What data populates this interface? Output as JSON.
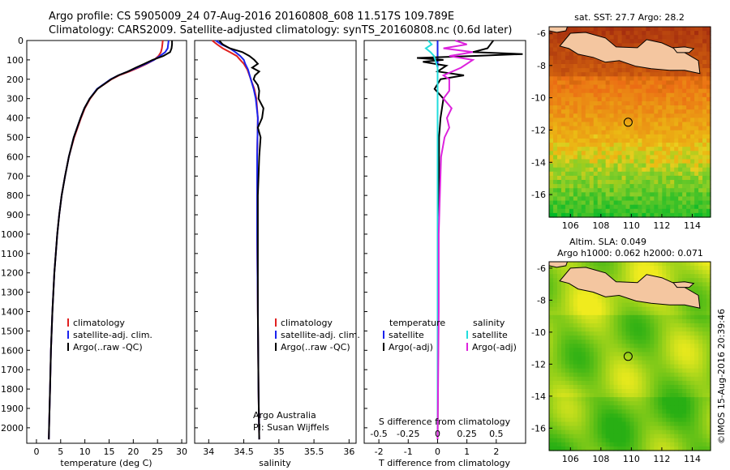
{
  "header": {
    "line1": "Argo profile: CS 5905009_24 07-Aug-2016 20160808_608 11.517S 109.789E",
    "line2": "Climatology: CARS2009. Satellite-adjusted climatology: synTS_20160808.nc (0.6d later)"
  },
  "colors": {
    "climatology": "#e02020",
    "satellite": "#1a22ee",
    "argo": "#000000",
    "sal_satellite": "#22dddd",
    "sal_argo": "#dd22dd",
    "land": "#f4c6a0"
  },
  "chart_data": [
    {
      "type": "line",
      "id": "temperature",
      "xlabel": "temperature (deg C)",
      "xlim": [
        -2,
        31
      ],
      "xticks": [
        "0",
        "5",
        "10",
        "15",
        "20",
        "25",
        "30"
      ],
      "ylim": [
        0,
        2080
      ],
      "yticks": [
        "0",
        "100",
        "200",
        "300",
        "400",
        "500",
        "600",
        "700",
        "800",
        "900",
        "1000",
        "1100",
        "1200",
        "1300",
        "1400",
        "1500",
        "1600",
        "1700",
        "1800",
        "1900",
        "2000"
      ],
      "series": [
        {
          "name": "climatology",
          "depth": [
            0,
            20,
            40,
            60,
            80,
            100,
            120,
            140,
            160,
            180,
            200,
            250,
            300,
            350,
            400,
            500,
            600,
            700,
            800,
            900,
            1000,
            1200,
            1400,
            1600,
            1800,
            2000,
            2060
          ],
          "values": [
            26.1,
            26.0,
            25.9,
            25.7,
            25.2,
            24.3,
            22.8,
            21.1,
            19.2,
            17.1,
            15.5,
            12.6,
            11.1,
            10.0,
            9.2,
            7.8,
            6.7,
            5.9,
            5.2,
            4.7,
            4.3,
            3.7,
            3.3,
            3.0,
            2.8,
            2.6,
            2.55
          ]
        },
        {
          "name": "satellite-adj. clim.",
          "depth": [
            0,
            20,
            40,
            60,
            80,
            100,
            120,
            140,
            160,
            180,
            200,
            250,
            300,
            350,
            400,
            500,
            600,
            700,
            800,
            900,
            1000,
            1200,
            1400,
            1600,
            1800,
            2000,
            2060
          ],
          "values": [
            27.3,
            27.2,
            27.1,
            26.6,
            25.5,
            24.3,
            22.6,
            20.8,
            18.9,
            16.9,
            15.3,
            12.5,
            11.0,
            9.9,
            9.1,
            7.7,
            6.7,
            5.9,
            5.2,
            4.7,
            4.3,
            3.7,
            3.3,
            3.0,
            2.8,
            2.6,
            2.55
          ]
        },
        {
          "name": "Argo(..raw -QC)",
          "depth": [
            0,
            20,
            40,
            60,
            80,
            100,
            120,
            140,
            160,
            180,
            200,
            250,
            300,
            350,
            400,
            500,
            600,
            700,
            800,
            900,
            1000,
            1200,
            1400,
            1600,
            1800,
            2000,
            2060
          ],
          "values": [
            28.0,
            28.0,
            27.9,
            27.6,
            26.2,
            24.0,
            22.3,
            20.5,
            18.9,
            16.9,
            15.4,
            12.6,
            11.0,
            9.9,
            9.1,
            7.7,
            6.7,
            5.9,
            5.2,
            4.7,
            4.3,
            3.7,
            3.3,
            3.0,
            2.8,
            2.6,
            2.55
          ]
        }
      ],
      "legend": [
        "climatology",
        "satellite-adj. clim.",
        "Argo(..raw -QC)"
      ]
    },
    {
      "type": "line",
      "id": "salinity",
      "xlabel": "salinity",
      "xlim": [
        33.8,
        36.1
      ],
      "xticks": [
        "34",
        "34.5",
        "35",
        "35.5",
        "36"
      ],
      "ylim": [
        0,
        2080
      ],
      "series": [
        {
          "name": "climatology",
          "depth": [
            0,
            20,
            40,
            60,
            80,
            100,
            120,
            150,
            200,
            250,
            300,
            400,
            600,
            800,
            1000,
            1400,
            1800,
            2060
          ],
          "values": [
            34.05,
            34.12,
            34.2,
            34.3,
            34.4,
            34.45,
            34.5,
            34.55,
            34.6,
            34.65,
            34.68,
            34.7,
            34.69,
            34.69,
            34.69,
            34.7,
            34.71,
            34.72
          ]
        },
        {
          "name": "satellite-adj. clim.",
          "depth": [
            0,
            20,
            40,
            60,
            80,
            100,
            120,
            150,
            200,
            250,
            300,
            400,
            600,
            800,
            1000,
            1400,
            1800,
            2060
          ],
          "values": [
            34.1,
            34.18,
            34.3,
            34.38,
            34.45,
            34.5,
            34.52,
            34.56,
            34.6,
            34.64,
            34.67,
            34.7,
            34.69,
            34.69,
            34.69,
            34.7,
            34.71,
            34.72
          ]
        },
        {
          "name": "Argo(..raw -QC)",
          "depth": [
            0,
            20,
            40,
            60,
            80,
            100,
            120,
            140,
            160,
            180,
            200,
            230,
            260,
            300,
            350,
            400,
            450,
            500,
            600,
            800,
            1000,
            1200,
            1400,
            1800,
            2060
          ],
          "values": [
            34.15,
            34.2,
            34.3,
            34.48,
            34.58,
            34.65,
            34.7,
            34.62,
            34.72,
            34.66,
            34.64,
            34.7,
            34.72,
            34.71,
            34.78,
            34.76,
            34.7,
            34.74,
            34.72,
            34.7,
            34.7,
            34.7,
            34.7,
            34.71,
            34.72
          ]
        }
      ],
      "legend": [
        "climatology",
        "satellite-adj. clim.",
        "Argo(..raw -QC)"
      ],
      "note1": "Argo Australia",
      "note2": "PI: Susan Wijffels"
    },
    {
      "type": "line",
      "id": "difference",
      "xlabel": "T difference from climatology",
      "xlabel_top": "S difference from climatology",
      "xlim": [
        -2.5,
        3.0
      ],
      "xticks": [
        "-2",
        "-1",
        "0",
        "1",
        "2"
      ],
      "xticks_top": [
        "-0.5",
        "-0.25",
        "0",
        "0.25",
        "0.5"
      ],
      "ylim": [
        0,
        2080
      ],
      "series": [
        {
          "name": "temperature satellite",
          "depth": [
            0,
            60,
            100,
            150,
            200,
            300,
            400,
            600,
            1000,
            1400,
            2060
          ],
          "values": [
            0,
            0,
            0,
            0,
            0,
            0,
            0,
            0,
            0,
            0,
            0
          ]
        },
        {
          "name": "temperature Argo(-adj)",
          "depth": [
            0,
            20,
            40,
            60,
            70,
            80,
            90,
            100,
            110,
            130,
            160,
            180,
            200,
            250,
            300,
            400,
            500,
            700,
            1000,
            1500,
            2060
          ],
          "values": [
            1.9,
            1.8,
            1.7,
            1.2,
            2.9,
            1.2,
            -0.7,
            0.2,
            -0.5,
            0.3,
            0.0,
            0.9,
            0.1,
            -0.1,
            0.2,
            0.1,
            0.05,
            0.05,
            0.03,
            0.02,
            0.0
          ]
        },
        {
          "name": "salinity satellite",
          "depth": [
            0,
            20,
            40,
            60,
            80,
            100,
            140,
            200,
            300,
            500,
            1000,
            2060
          ],
          "values": [
            -0.08,
            -0.05,
            -0.1,
            -0.06,
            -0.03,
            -0.02,
            0.0,
            0.0,
            0.0,
            0.0,
            0.0,
            0.0
          ]
        },
        {
          "name": "salinity Argo(-adj)",
          "depth": [
            0,
            20,
            40,
            60,
            80,
            100,
            140,
            180,
            200,
            260,
            300,
            350,
            400,
            450,
            500,
            600,
            800,
            1000,
            1400,
            2060
          ],
          "values": [
            0.15,
            0.25,
            0.05,
            0.3,
            0.1,
            0.3,
            0.2,
            0.05,
            0.1,
            0.1,
            0.05,
            0.12,
            0.08,
            0.1,
            0.06,
            0.03,
            0.02,
            0.01,
            0.01,
            0.0
          ]
        }
      ],
      "legend_temperature": {
        "title": "temperature",
        "items": [
          "satellite",
          "Argo(-adj)"
        ]
      },
      "legend_salinity": {
        "title": "salinity",
        "items": [
          "satellite",
          "Argo(-adj)"
        ]
      }
    }
  ],
  "maps": {
    "sst": {
      "title": "sat. SST: 27.7 Argo: 28.2",
      "xticks": [
        "106",
        "108",
        "110",
        "112",
        "114"
      ],
      "yticks": [
        "-6",
        "-8",
        "-10",
        "-12",
        "-14",
        "-16"
      ],
      "lon": [
        104.6,
        115.2
      ],
      "lat": [
        -17.4,
        -5.6
      ],
      "argo_lon": 109.789,
      "argo_lat": -11.517
    },
    "sla": {
      "title1": "Altim. SLA: 0.049",
      "title2": "Argo h1000: 0.062 h2000: 0.071",
      "xticks": [
        "106",
        "108",
        "110",
        "112",
        "114"
      ],
      "yticks": [
        "-6",
        "-8",
        "-10",
        "-12",
        "-14",
        "-16"
      ],
      "lon": [
        104.6,
        115.2
      ],
      "lat": [
        -17.4,
        -5.6
      ],
      "argo_lon": 109.789,
      "argo_lat": -11.517
    }
  },
  "footer": "©IMOS 15-Aug-2016 20:39:46"
}
